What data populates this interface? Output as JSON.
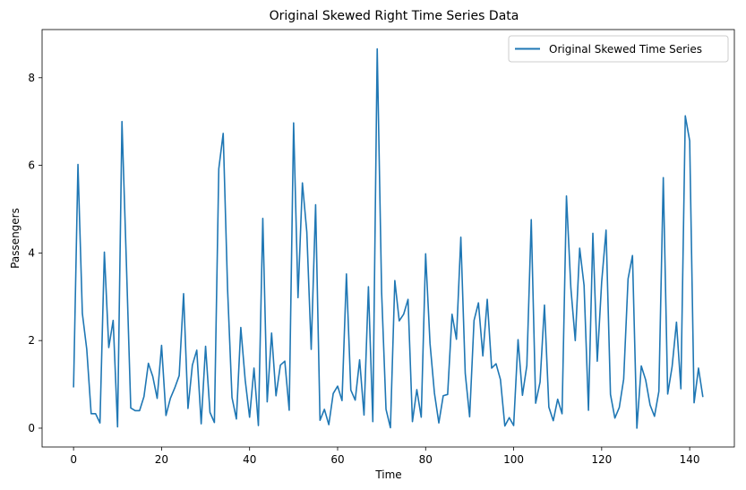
{
  "chart_data": {
    "type": "line",
    "title": "Original Skewed Right Time Series Data",
    "xlabel": "Time",
    "ylabel": "Passengers",
    "xlim": [
      -7.15,
      150.15
    ],
    "ylim": [
      -0.43,
      9.1
    ],
    "x_ticks": [
      "0",
      "20",
      "40",
      "60",
      "80",
      "100",
      "120",
      "140"
    ],
    "y_ticks": [
      "0",
      "2",
      "4",
      "6",
      "8"
    ],
    "legend_position": "top-right",
    "grid": false,
    "series": [
      {
        "name": "Original Skewed Time Series",
        "color": "#1f77b4",
        "x_start": 0,
        "x_step": 1,
        "values": [
          0.93,
          6.02,
          2.62,
          1.8,
          0.33,
          0.33,
          0.12,
          4.02,
          1.84,
          2.46,
          0.03,
          7.0,
          3.78,
          0.46,
          0.4,
          0.4,
          0.72,
          1.48,
          1.18,
          0.68,
          1.89,
          0.29,
          0.68,
          0.92,
          1.2,
          3.07,
          0.45,
          1.44,
          1.78,
          0.1,
          1.87,
          0.36,
          0.13,
          5.92,
          6.73,
          3.17,
          0.7,
          0.21,
          2.3,
          1.1,
          0.25,
          1.37,
          0.06,
          4.79,
          0.6,
          2.17,
          0.74,
          1.44,
          1.53,
          0.41,
          6.97,
          2.98,
          5.6,
          4.48,
          1.8,
          5.1,
          0.18,
          0.43,
          0.08,
          0.79,
          0.96,
          0.63,
          3.52,
          0.87,
          0.64,
          1.56,
          0.3,
          3.23,
          0.15,
          8.66,
          3.1,
          0.43,
          0.01,
          3.37,
          2.45,
          2.6,
          2.94,
          0.15,
          0.88,
          0.25,
          3.98,
          1.93,
          0.8,
          0.12,
          0.74,
          0.77,
          2.6,
          2.03,
          4.36,
          1.25,
          0.26,
          2.46,
          2.86,
          1.65,
          2.94,
          1.37,
          1.47,
          1.11,
          0.05,
          0.24,
          0.06,
          2.02,
          0.75,
          1.43,
          4.76,
          0.57,
          1.05,
          2.81,
          0.48,
          0.17,
          0.66,
          0.33,
          5.3,
          3.2,
          2.0,
          4.11,
          3.26,
          0.41,
          4.45,
          1.53,
          3.34,
          4.52,
          0.77,
          0.23,
          0.47,
          1.12,
          3.41,
          3.94,
          0.0,
          1.42,
          1.1,
          0.53,
          0.27,
          0.84,
          5.72,
          0.78,
          1.4,
          2.42,
          0.9,
          7.13,
          6.56,
          0.58,
          1.37,
          0.71
        ]
      }
    ]
  }
}
